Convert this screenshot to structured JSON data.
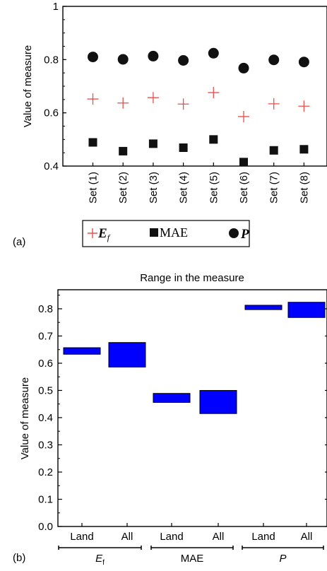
{
  "panels": {
    "a": {
      "label": "(a)"
    },
    "b": {
      "label": "(b)"
    }
  },
  "chart_data": [
    {
      "type": "scatter",
      "title": "",
      "ylabel": "Value of measure",
      "ylim": [
        0.4,
        1.0
      ],
      "yticks": [
        "0.4",
        "0.6",
        "0.8",
        "1"
      ],
      "categories": [
        "Set (1)",
        "Set (2)",
        "Set (3)",
        "Set (4)",
        "Set (5)",
        "Set (6)",
        "Set (7)",
        "Set (8)"
      ],
      "series": [
        {
          "name": "E_f",
          "marker": "plus",
          "color": "#e8504b",
          "values": [
            0.652,
            0.637,
            0.657,
            0.633,
            0.676,
            0.586,
            0.634,
            0.625
          ]
        },
        {
          "name": "MAE",
          "marker": "square",
          "color": "#111111",
          "values": [
            0.489,
            0.456,
            0.484,
            0.469,
            0.5,
            0.415,
            0.459,
            0.463
          ]
        },
        {
          "name": "P",
          "marker": "circle",
          "color": "#111111",
          "values": [
            0.81,
            0.801,
            0.813,
            0.797,
            0.824,
            0.768,
            0.799,
            0.791
          ]
        }
      ],
      "legend": {
        "placement": "bottom",
        "items": [
          {
            "main": "E",
            "sub": "f",
            "marker": "plus",
            "color": "#e8504b"
          },
          {
            "main": "MAE",
            "sub": "",
            "marker": "square",
            "color": "#111111"
          },
          {
            "main": "P",
            "sub": "",
            "marker": "circle",
            "color": "#111111"
          }
        ]
      }
    },
    {
      "type": "bar",
      "subtype": "floating-range",
      "title": "Range in the measure",
      "ylabel": "Value of measure",
      "ylim": [
        0.0,
        0.87
      ],
      "yticks": [
        "0.0",
        "0.1",
        "0.2",
        "0.3",
        "0.4",
        "0.5",
        "0.6",
        "0.7",
        "0.8"
      ],
      "bar_color": "#0000ff",
      "groups": [
        {
          "main": "E",
          "sub": "f",
          "bars": [
            {
              "label": "Land",
              "low": 0.633,
              "high": 0.657
            },
            {
              "label": "All",
              "low": 0.586,
              "high": 0.676
            }
          ]
        },
        {
          "main": "MAE",
          "sub": "",
          "bars": [
            {
              "label": "Land",
              "low": 0.456,
              "high": 0.489
            },
            {
              "label": "All",
              "low": 0.415,
              "high": 0.5
            }
          ]
        },
        {
          "main": "P",
          "sub": "",
          "bars": [
            {
              "label": "Land",
              "low": 0.797,
              "high": 0.813
            },
            {
              "label": "All",
              "low": 0.768,
              "high": 0.824
            }
          ]
        }
      ]
    }
  ]
}
